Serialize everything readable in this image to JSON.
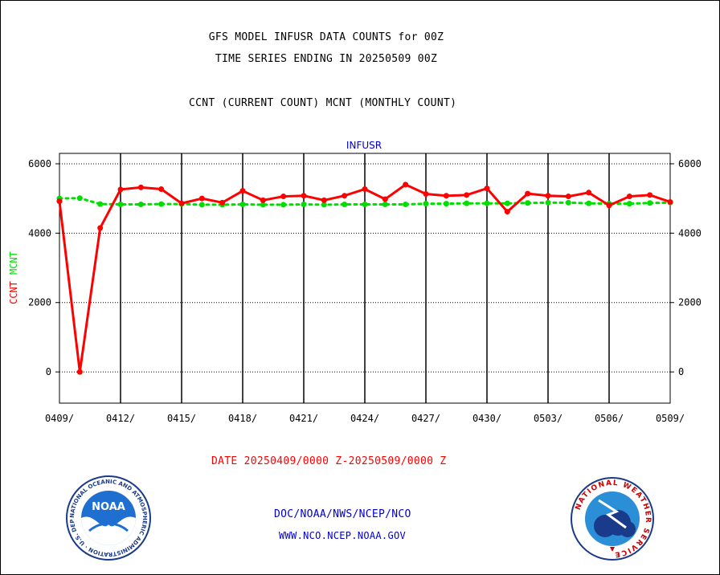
{
  "header": {
    "title1": "GFS MODEL INFUSR DATA COUNTS for 00Z",
    "title2": "TIME SERIES ENDING IN 20250509 00Z",
    "subtitle": "CCNT (CURRENT COUNT) MCNT (MONTHLY COUNT)"
  },
  "footer": {
    "date_range": "DATE 20250409/0000 Z-20250509/0000 Z",
    "org": "DOC/NOAA/NWS/NCEP/NCO",
    "url": "WWW.NCO.NCEP.NOAA.GOV"
  },
  "logos": {
    "left": "noaa-logo",
    "left_text": "NOAA",
    "left_ring_text": "NATIONAL OCEANIC AND ATMOSPHERIC ADMINISTRATION · U.S. DEPARTMENT OF COMMERCE ·",
    "right": "nws-logo",
    "right_ring_text": "NATIONAL WEATHER SERVICE"
  },
  "chart_data": {
    "type": "line",
    "title": "INFUSR",
    "ylabel_parts": [
      {
        "text": "CCNT",
        "color": "#ff0000"
      },
      {
        "text": "MCNT",
        "color": "#00dd00"
      }
    ],
    "x_ticks": [
      "0409/",
      "0412/",
      "0415/",
      "0418/",
      "0421/",
      "0424/",
      "0427/",
      "0430/",
      "0503/",
      "0506/",
      "0509/"
    ],
    "x_days_per_tick": 3,
    "ylim": [
      -900,
      6300
    ],
    "y_ticks": [
      0,
      2000,
      4000,
      6000
    ],
    "grid": true,
    "series": [
      {
        "name": "CCNT",
        "color": "#ff0000",
        "values": [
          4920,
          0,
          4150,
          5260,
          5320,
          5270,
          4860,
          5000,
          4880,
          5220,
          4950,
          5060,
          5080,
          4950,
          5080,
          5270,
          4980,
          5400,
          5130,
          5080,
          5100,
          5290,
          4620,
          5140,
          5080,
          5060,
          5170,
          4800,
          5060,
          5100,
          4900
        ]
      },
      {
        "name": "MCNT",
        "color": "#00dd00",
        "values": [
          5000,
          5010,
          4840,
          4830,
          4830,
          4840,
          4840,
          4820,
          4820,
          4830,
          4820,
          4820,
          4830,
          4820,
          4830,
          4830,
          4830,
          4830,
          4850,
          4850,
          4860,
          4860,
          4860,
          4870,
          4880,
          4880,
          4860,
          4850,
          4850,
          4870,
          4880
        ]
      }
    ],
    "colors": {
      "ccnt": "#ff0000",
      "mcnt": "#00dd00",
      "title": "#0000cc"
    }
  }
}
